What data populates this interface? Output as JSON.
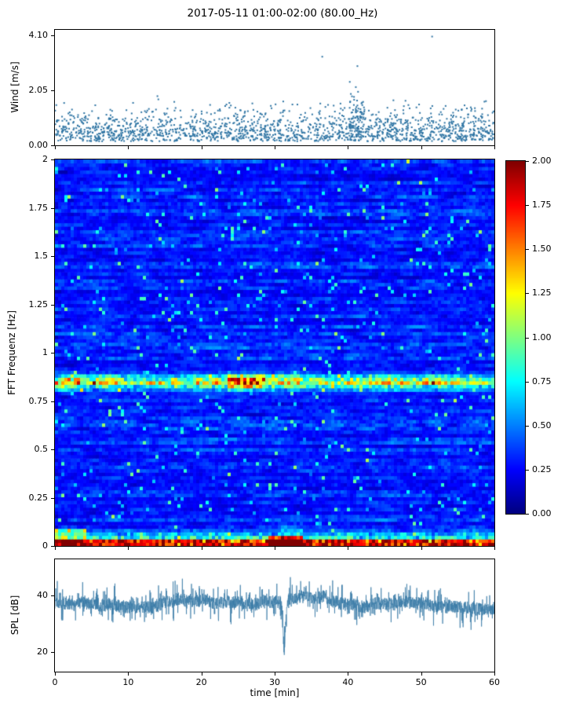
{
  "title": "2017-05-11 01:00-02:00 (80.00_Hz)",
  "xlabel": "time [min]",
  "xtick_labels": [
    "0",
    "10",
    "20",
    "30",
    "40",
    "50",
    "60"
  ],
  "xtick_values": [
    0,
    10,
    20,
    30,
    40,
    50,
    60
  ],
  "chart_data": [
    {
      "id": "wind",
      "type": "scatter",
      "ylabel": "Wind [m/s]",
      "ylim": [
        0,
        4.3
      ],
      "ytick_labels": [
        "0.00",
        "2.05",
        "4.10"
      ],
      "ytick_values": [
        0,
        2.05,
        4.1
      ],
      "xlim": [
        0,
        60
      ],
      "marker_color": "#2e74a3",
      "n_points": 1700,
      "typical_range": [
        0.2,
        2.2
      ],
      "max_value": 4.05,
      "outliers": [
        [
          36.5,
          3.3
        ],
        [
          51.5,
          4.05
        ],
        [
          41.3,
          2.95
        ]
      ],
      "dense_cluster_time": 41
    },
    {
      "id": "spectrogram",
      "type": "heatmap",
      "ylabel": "FFT Frequenz [Hz]",
      "ylim": [
        0,
        2
      ],
      "ytick_labels": [
        "0",
        "0.25",
        "0.5",
        "0.75",
        "1",
        "1.25",
        "1.5",
        "1.75",
        "2"
      ],
      "ytick_values": [
        0,
        0.25,
        0.5,
        0.75,
        1,
        1.25,
        1.5,
        1.75,
        2
      ],
      "xlim": [
        0,
        60
      ],
      "colormap": "jet",
      "value_range": [
        0,
        2
      ],
      "background_level": 0.25,
      "features": [
        {
          "kind": "tonal-band",
          "freq_hz": 0.85,
          "bandwidth_hz": 0.07,
          "peak_value": 1.6,
          "note": "persistent cyan/yellow horizontal band across all 60 min, brightest near 25-28 min"
        },
        {
          "kind": "low-frequency-energy",
          "below_hz": 0.08,
          "value": 1.5,
          "note": "orange-red energy band along the bottom edge for all times"
        },
        {
          "kind": "hotspot",
          "time_min": 31,
          "freq_hz": 0.02,
          "value": 2.0,
          "note": "dark red patch near 29-33 min at lowest frequencies"
        }
      ],
      "colorbar": {
        "min": 0,
        "max": 2,
        "tick_labels": [
          "2.00",
          "1.75",
          "1.50",
          "1.25",
          "1.00",
          "0.75",
          "0.50",
          "0.25",
          "0.00"
        ],
        "tick_values": [
          2,
          1.75,
          1.5,
          1.25,
          1,
          0.75,
          0.5,
          0.25,
          0
        ]
      }
    },
    {
      "id": "spl",
      "type": "line",
      "ylabel": "SPL [dB]",
      "ylim": [
        13,
        53
      ],
      "ytick_labels": [
        "20",
        "40"
      ],
      "ytick_values": [
        20,
        40
      ],
      "xlim": [
        0,
        60
      ],
      "line_color": "#3a7ca8",
      "baseline_db": 38,
      "noise_db": 5,
      "typical_range": [
        30,
        48
      ],
      "dip": {
        "time_min": 31.3,
        "min_db": 21
      }
    }
  ]
}
